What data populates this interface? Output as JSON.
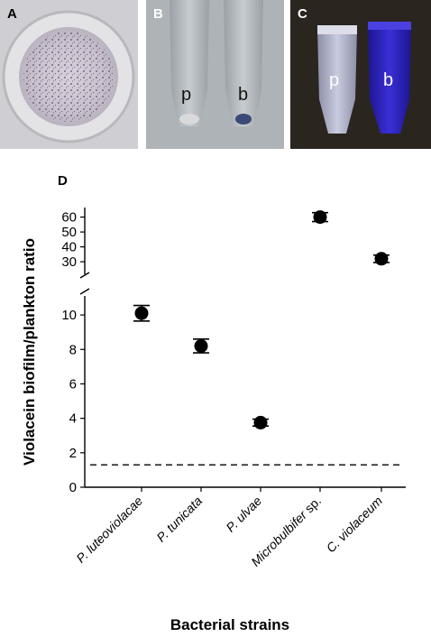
{
  "panels": {
    "a": {
      "label": "A"
    },
    "b": {
      "label": "B",
      "tube_left": "p",
      "tube_right": "b"
    },
    "c": {
      "label": "C",
      "tube_left": "p",
      "tube_right": "b"
    },
    "d": {
      "label": "D"
    }
  },
  "colors": {
    "violacein": "#2a1fb8",
    "tube_grey": "#8e9499",
    "panel_c_bg": "#2b2520",
    "panel_b_bg": "#a9aeb2",
    "marker": "#000000"
  },
  "chart_data": {
    "type": "scatter",
    "categories": [
      "P. luteoviolacae",
      "P. tunicata",
      "P. ulvae",
      "Microbulbifer sp.",
      "C. violaceum"
    ],
    "category_parts": [
      {
        "italic": "P. luteoviolacae",
        "plain": ""
      },
      {
        "italic": "P. tunicata",
        "plain": ""
      },
      {
        "italic": "P. ulvae",
        "plain": ""
      },
      {
        "italic": "Microbulbifer",
        "plain": " sp."
      },
      {
        "italic": "C. violaceum",
        "plain": ""
      }
    ],
    "series": [
      {
        "values": [
          10.1,
          8.2,
          3.75,
          60,
          32
        ],
        "error": [
          0.45,
          0.4,
          0.2,
          3,
          2.5
        ]
      }
    ],
    "ylabel": "Violacein biofilm/plankton ratio",
    "xlabel": "Bacterial strains",
    "y_axis": {
      "broken": true,
      "lower": {
        "range": [
          0,
          11
        ],
        "ticks": [
          0,
          2,
          4,
          6,
          8,
          10
        ]
      },
      "upper": {
        "range": [
          24,
          64
        ],
        "ticks": [
          30,
          40,
          50,
          60
        ]
      }
    },
    "reference_line": {
      "y": 1.3,
      "style": "dashed"
    },
    "grid": false
  }
}
